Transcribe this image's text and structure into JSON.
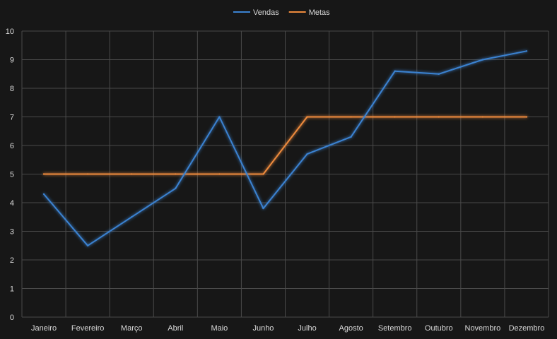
{
  "chart_data": {
    "type": "line",
    "categories": [
      "Janeiro",
      "Fevereiro",
      "Março",
      "Abril",
      "Maio",
      "Junho",
      "Julho",
      "Agosto",
      "Setembro",
      "Outubro",
      "Novembro",
      "Dezembro"
    ],
    "series": [
      {
        "name": "Vendas",
        "color": "#3b82d1",
        "values": [
          4.3,
          2.5,
          3.5,
          4.5,
          7.0,
          3.8,
          5.7,
          6.3,
          8.6,
          8.5,
          9.0,
          9.3
        ]
      },
      {
        "name": "Metas",
        "color": "#ed8a3c",
        "values": [
          5,
          5,
          5,
          5,
          5,
          5,
          7,
          7,
          7,
          7,
          7,
          7
        ]
      }
    ],
    "ylim": [
      0,
      10
    ],
    "yticks": [
      "0",
      "1",
      "2",
      "3",
      "4",
      "5",
      "6",
      "7",
      "8",
      "9",
      "10"
    ],
    "title": "",
    "xlabel": "",
    "ylabel": "",
    "grid": true,
    "legend_position": "top",
    "background": "#171717",
    "grid_color": "#4a4a4a",
    "text_color": "#d9d9d9"
  }
}
